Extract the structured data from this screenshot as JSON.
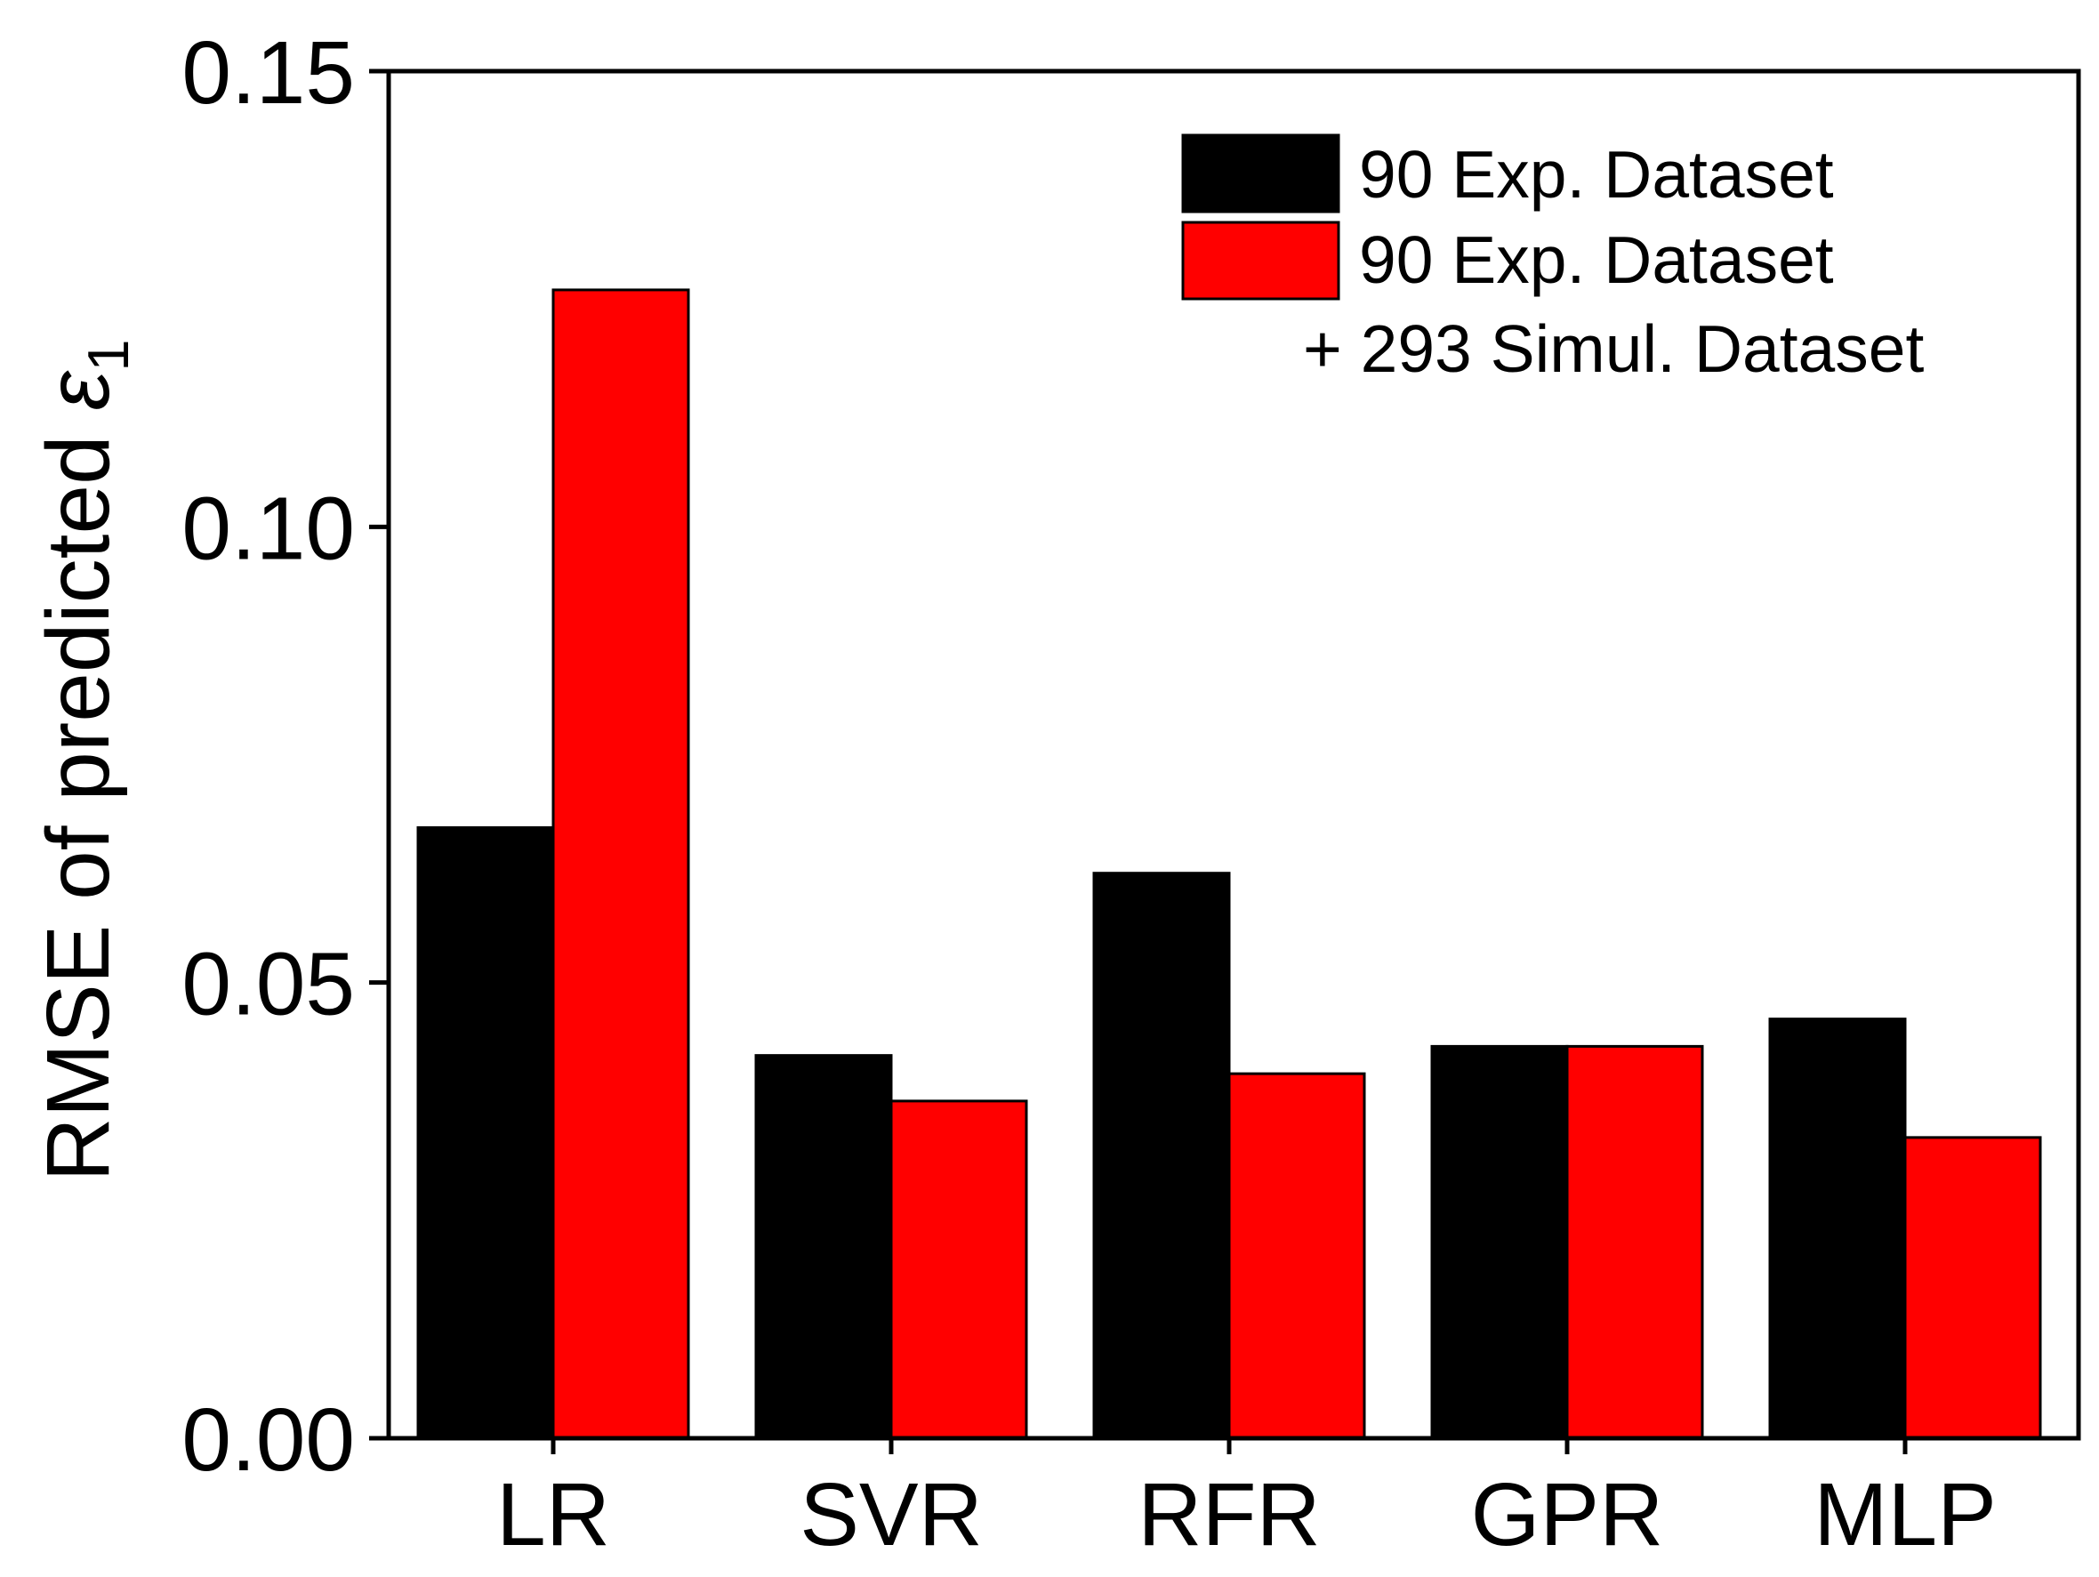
{
  "chart_data": {
    "type": "bar",
    "title": "",
    "xlabel": "",
    "ylabel": "RMSE of predicted ",
    "ylabel_symbol": "ε",
    "ylabel_subscript": "1",
    "ylim": [
      0,
      0.15
    ],
    "yticks": [
      "0.00",
      "0.05",
      "0.10",
      "0.15"
    ],
    "ytick_values": [
      0,
      0.05,
      0.1,
      0.15
    ],
    "categories": [
      "LR",
      "SVR",
      "RFR",
      "GPR",
      "MLP"
    ],
    "series": [
      {
        "name": "90 Exp. Dataset",
        "color": "#000000",
        "values": [
          0.067,
          0.042,
          0.062,
          0.043,
          0.046
        ]
      },
      {
        "name": "90 Exp. Dataset",
        "name_line2": "+ 293 Simul. Dataset",
        "color": "#ff0000",
        "values": [
          0.126,
          0.037,
          0.04,
          0.043,
          0.033
        ]
      }
    ],
    "legend_position": "top-right",
    "grid": false
  }
}
